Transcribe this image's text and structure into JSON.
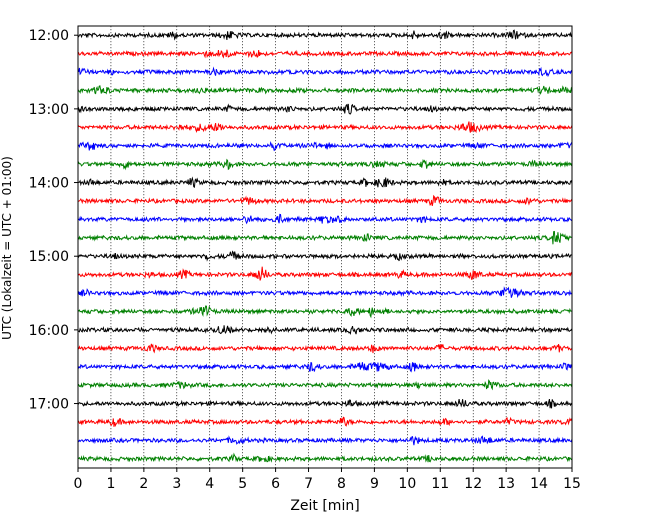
{
  "chart_data": {
    "type": "line",
    "title": "",
    "xlabel": "Zeit  [min]",
    "ylabel": "UTC (Lokalzeit = UTC + 01:00)",
    "xlim": [
      0,
      15
    ],
    "x_ticks": [
      0,
      1,
      2,
      3,
      4,
      5,
      6,
      7,
      8,
      9,
      10,
      11,
      12,
      13,
      14,
      15
    ],
    "x_grid": true,
    "ylim_traces": [
      -0.5,
      23.5
    ],
    "y_ticks": [
      {
        "label": "12:00",
        "trace": 0
      },
      {
        "label": "13:00",
        "trace": 4
      },
      {
        "label": "14:00",
        "trace": 8
      },
      {
        "label": "15:00",
        "trace": 12
      },
      {
        "label": "16:00",
        "trace": 16
      },
      {
        "label": "17:00",
        "trace": 20
      }
    ],
    "trace_interval_minutes": 15,
    "trace_count": 24,
    "start_time_utc": "12:00",
    "color_cycle": [
      "#000000",
      "#ff0000",
      "#0000ff",
      "#008000"
    ],
    "description_of_traces": "seismogram traces, 15-minute rows"
  }
}
